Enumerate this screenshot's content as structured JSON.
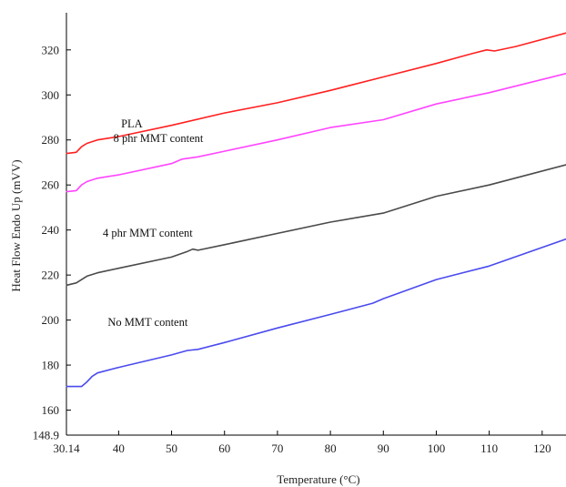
{
  "chart_data": {
    "type": "line",
    "title": "",
    "xlabel": "Temperature (°C)",
    "ylabel": "Heat Flow Endo Up (mVV)",
    "xlim": [
      30.14,
      124.5
    ],
    "ylim": [
      148.9,
      336.5
    ],
    "x_ticks": [
      {
        "value": 30.14,
        "label": "30.14"
      },
      {
        "value": 40,
        "label": "40"
      },
      {
        "value": 50,
        "label": "50"
      },
      {
        "value": 60,
        "label": "60"
      },
      {
        "value": 70,
        "label": "70"
      },
      {
        "value": 80,
        "label": "80"
      },
      {
        "value": 90,
        "label": "90"
      },
      {
        "value": 100,
        "label": "100"
      },
      {
        "value": 110,
        "label": "110"
      },
      {
        "value": 120,
        "label": "120"
      }
    ],
    "y_ticks": [
      {
        "value": 148.9,
        "label": "148.9"
      },
      {
        "value": 160,
        "label": "160"
      },
      {
        "value": 180,
        "label": "180"
      },
      {
        "value": 200,
        "label": "200"
      },
      {
        "value": 220,
        "label": "220"
      },
      {
        "value": 240,
        "label": "240"
      },
      {
        "value": 260,
        "label": "260"
      },
      {
        "value": 280,
        "label": "280"
      },
      {
        "value": 300,
        "label": "300"
      },
      {
        "value": 320,
        "label": "320"
      }
    ],
    "grid": false,
    "series": [
      {
        "name": "PLA",
        "color": "#ff2020",
        "x": [
          30.2,
          32,
          33,
          34,
          36,
          40,
          50,
          60,
          70,
          80,
          90,
          100,
          107,
          109.5,
          111,
          115,
          124.5
        ],
        "y": [
          274.0,
          274.5,
          277.0,
          278.5,
          280.0,
          281.5,
          286.5,
          292.0,
          296.5,
          302.0,
          308.0,
          314.0,
          318.5,
          320.0,
          319.5,
          321.5,
          327.5
        ]
      },
      {
        "name": "8 phr MMT content",
        "color": "#ff44ff",
        "x": [
          30.2,
          32,
          33,
          34,
          36,
          40,
          50,
          52,
          55,
          60,
          70,
          80,
          90,
          100,
          110,
          124.5
        ],
        "y": [
          257.0,
          257.5,
          260.0,
          261.5,
          263.0,
          264.5,
          269.5,
          271.5,
          272.5,
          275.0,
          280.0,
          285.5,
          289.0,
          296.0,
          301.0,
          309.5
        ]
      },
      {
        "name": "4 phr MMT content",
        "color": "#4a4a4a",
        "x": [
          30.2,
          32,
          34,
          36,
          40,
          50,
          53,
          54,
          55,
          60,
          70,
          80,
          90,
          100,
          110,
          124.5
        ],
        "y": [
          215.5,
          216.5,
          219.5,
          221.0,
          223.0,
          228.0,
          230.5,
          231.5,
          231.0,
          233.5,
          238.5,
          243.5,
          247.5,
          255.0,
          260.0,
          269.0
        ]
      },
      {
        "name": "No MMT content",
        "color": "#4a4aee",
        "x": [
          30.2,
          33,
          34,
          35,
          36,
          40,
          50,
          53,
          55,
          60,
          70,
          80,
          88,
          90,
          100,
          110,
          124.5
        ],
        "y": [
          170.5,
          170.5,
          172.5,
          175.0,
          176.5,
          179.0,
          184.5,
          186.5,
          187.0,
          190.0,
          196.5,
          202.5,
          207.5,
          209.5,
          218.0,
          224.0,
          236.0
        ]
      }
    ],
    "annotations": [
      {
        "text": "PLA",
        "x": 42.5,
        "y": 285.5
      },
      {
        "text": "8 phr MMT content",
        "x": 47.5,
        "y": 279.0
      },
      {
        "text": "4 phr MMT content",
        "x": 45.5,
        "y": 237.0
      },
      {
        "text": "No MMT content",
        "x": 45.5,
        "y": 197.5
      }
    ]
  }
}
